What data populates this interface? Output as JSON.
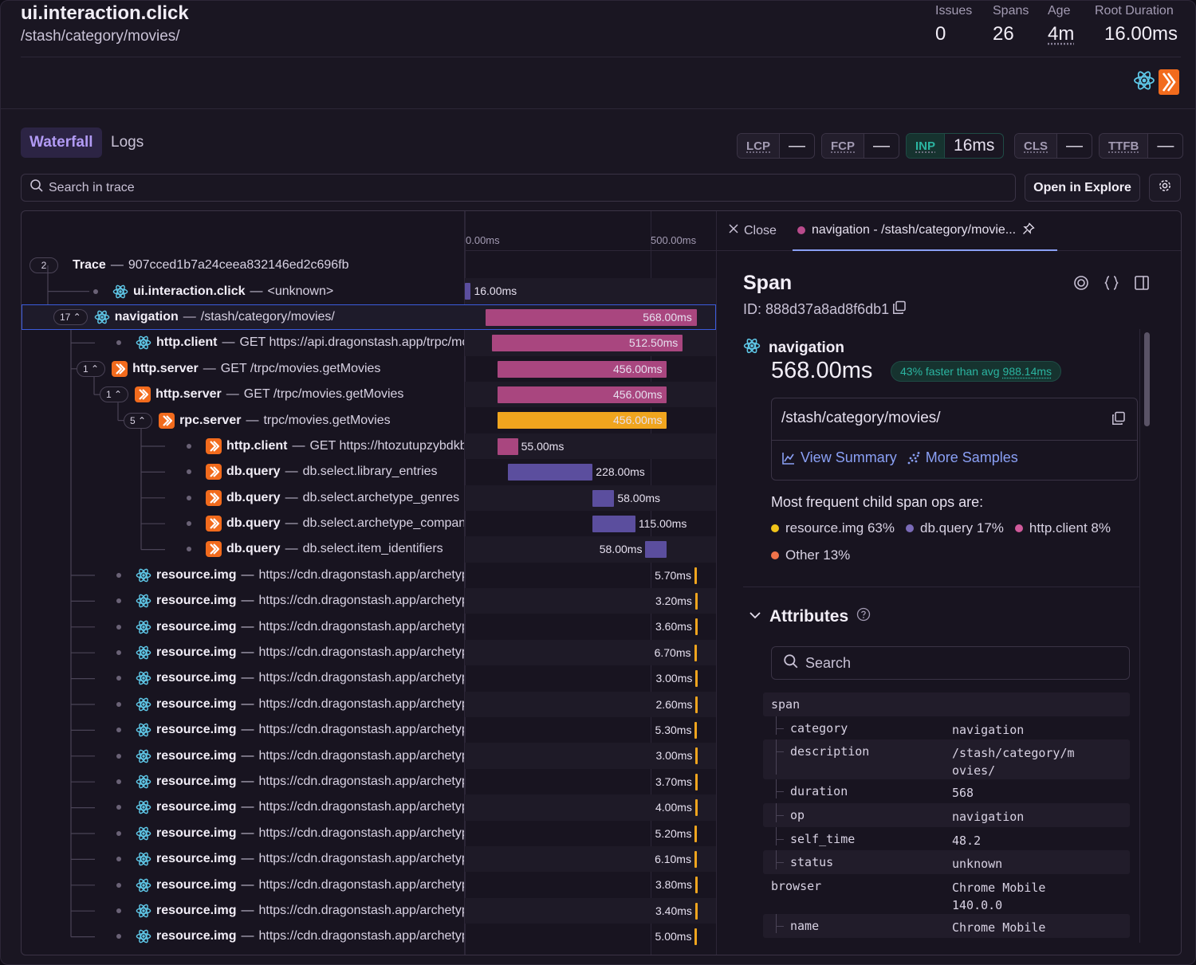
{
  "header": {
    "title": "ui.interaction.click",
    "path": "/stash/category/movies/",
    "stats": [
      {
        "label": "Issues",
        "value": "0"
      },
      {
        "label": "Spans",
        "value": "26"
      },
      {
        "label": "Age",
        "value": "4m"
      },
      {
        "label": "Root Duration",
        "value": "16.00ms"
      }
    ]
  },
  "tabs": {
    "waterfall": "Waterfall",
    "logs": "Logs"
  },
  "vitals": [
    {
      "key": "LCP",
      "value": "—"
    },
    {
      "key": "FCP",
      "value": "—"
    },
    {
      "key": "INP",
      "value": "16ms"
    },
    {
      "key": "CLS",
      "value": "—"
    },
    {
      "key": "TTFB",
      "value": "—"
    }
  ],
  "search": {
    "placeholder": "Search in trace",
    "open_explore": "Open in Explore"
  },
  "ruler": {
    "t0": "0.00ms",
    "t1": "500.00ms"
  },
  "trace": {
    "count": "2",
    "op": "Trace",
    "id": "907cced1b7a24ceea832146ed2c696fb"
  },
  "rows": [
    {
      "op": "ui.interaction.click",
      "desc": "<unknown>",
      "icon": "react",
      "label": "16.00ms",
      "start_ms": 0,
      "duration_ms": 16,
      "color": "#5b4e9e"
    },
    {
      "badge": "17^",
      "op": "navigation",
      "desc": "/stash/category/movies/",
      "icon": "react",
      "label": "568.00ms",
      "start_ms": 56,
      "duration_ms": 568,
      "color": "#a9467f",
      "selected": true
    },
    {
      "op": "http.client",
      "desc": "GET https://api.dragonstash.app/trpc/movies.getMovies",
      "icon": "react",
      "label": "512.50ms",
      "start_ms": 74,
      "duration_ms": 512.5,
      "color": "#a9467f"
    },
    {
      "badge": "1^",
      "op": "http.server",
      "desc": "GET /trpc/movies.getMovies",
      "icon": "node",
      "label": "456.00ms",
      "start_ms": 88,
      "duration_ms": 456,
      "color": "#a9467f"
    },
    {
      "badge": "1^",
      "op": "http.server",
      "desc": "GET /trpc/movies.getMovies",
      "icon": "node",
      "label": "456.00ms",
      "start_ms": 88,
      "duration_ms": 456,
      "color": "#a9467f"
    },
    {
      "badge": "5^",
      "op": "rpc.server",
      "desc": "trpc/movies.getMovies",
      "icon": "node",
      "label": "456.00ms",
      "start_ms": 88,
      "duration_ms": 456,
      "color": "#f0a51e"
    },
    {
      "op": "http.client",
      "desc": "GET https://htozutupzybdkbnkdmsa.supabase.co",
      "icon": "node",
      "label": "55.00ms",
      "start_ms": 88,
      "duration_ms": 55,
      "color": "#a9467f"
    },
    {
      "op": "db.query",
      "desc": "db.select.library_entries",
      "icon": "node",
      "label": "228.00ms",
      "start_ms": 116,
      "duration_ms": 228,
      "color": "#5b4e9e"
    },
    {
      "op": "db.query",
      "desc": "db.select.archetype_genres",
      "icon": "node",
      "label": "58.00ms",
      "start_ms": 344,
      "duration_ms": 58,
      "color": "#5b4e9e"
    },
    {
      "op": "db.query",
      "desc": "db.select.archetype_companies",
      "icon": "node",
      "label": "115.00ms",
      "start_ms": 344,
      "duration_ms": 115,
      "color": "#5b4e9e"
    },
    {
      "op": "db.query",
      "desc": "db.select.item_identifiers",
      "icon": "node",
      "label": "58.00ms",
      "start_ms": 486,
      "duration_ms": 58,
      "color": "#5b4e9e"
    },
    {
      "op": "resource.img",
      "desc": "https://cdn.dragonstash.app/archetypes/movies",
      "icon": "react",
      "label": "5.70ms",
      "start_ms": 618,
      "duration_ms": 5.7,
      "color": "#f0a51e"
    },
    {
      "op": "resource.img",
      "desc": "https://cdn.dragonstash.app/archetypes/movies",
      "icon": "react",
      "label": "3.20ms",
      "start_ms": 620,
      "duration_ms": 3.2,
      "color": "#f0a51e"
    },
    {
      "op": "resource.img",
      "desc": "https://cdn.dragonstash.app/archetypes/movies",
      "icon": "react",
      "label": "3.60ms",
      "start_ms": 620,
      "duration_ms": 3.6,
      "color": "#f0a51e"
    },
    {
      "op": "resource.img",
      "desc": "https://cdn.dragonstash.app/archetypes/movies",
      "icon": "react",
      "label": "6.70ms",
      "start_ms": 617,
      "duration_ms": 6.7,
      "color": "#f0a51e"
    },
    {
      "op": "resource.img",
      "desc": "https://cdn.dragonstash.app/archetypes/movies",
      "icon": "react",
      "label": "3.00ms",
      "start_ms": 621,
      "duration_ms": 3.0,
      "color": "#f0a51e"
    },
    {
      "op": "resource.img",
      "desc": "https://cdn.dragonstash.app/archetypes/movies",
      "icon": "react",
      "label": "2.60ms",
      "start_ms": 621,
      "duration_ms": 2.6,
      "color": "#f0a51e"
    },
    {
      "op": "resource.img",
      "desc": "https://cdn.dragonstash.app/archetypes/movies",
      "icon": "react",
      "label": "5.30ms",
      "start_ms": 619,
      "duration_ms": 5.3,
      "color": "#f0a51e"
    },
    {
      "op": "resource.img",
      "desc": "https://cdn.dragonstash.app/archetypes/movies",
      "icon": "react",
      "label": "3.00ms",
      "start_ms": 621,
      "duration_ms": 3.0,
      "color": "#f0a51e"
    },
    {
      "op": "resource.img",
      "desc": "https://cdn.dragonstash.app/archetypes/movies",
      "icon": "react",
      "label": "3.70ms",
      "start_ms": 620,
      "duration_ms": 3.7,
      "color": "#f0a51e"
    },
    {
      "op": "resource.img",
      "desc": "https://cdn.dragonstash.app/archetypes/movies",
      "icon": "react",
      "label": "4.00ms",
      "start_ms": 620,
      "duration_ms": 4.0,
      "color": "#f0a51e"
    },
    {
      "op": "resource.img",
      "desc": "https://cdn.dragonstash.app/archetypes/movies",
      "icon": "react",
      "label": "5.20ms",
      "start_ms": 619,
      "duration_ms": 5.2,
      "color": "#f0a51e"
    },
    {
      "op": "resource.img",
      "desc": "https://cdn.dragonstash.app/archetypes/movies",
      "icon": "react",
      "label": "6.10ms",
      "start_ms": 618,
      "duration_ms": 6.1,
      "color": "#f0a51e"
    },
    {
      "op": "resource.img",
      "desc": "https://cdn.dragonstash.app/archetypes/movies",
      "icon": "react",
      "label": "3.80ms",
      "start_ms": 620,
      "duration_ms": 3.8,
      "color": "#f0a51e"
    },
    {
      "op": "resource.img",
      "desc": "https://cdn.dragonstash.app/archetypes/movies",
      "icon": "react",
      "label": "3.40ms",
      "start_ms": 620,
      "duration_ms": 3.4,
      "color": "#f0a51e"
    },
    {
      "op": "resource.img",
      "desc": "https://cdn.dragonstash.app/archetypes/movies",
      "icon": "react",
      "label": "5.00ms",
      "start_ms": 619,
      "duration_ms": 5.0,
      "color": "#f0a51e"
    }
  ],
  "timeline_max_ms": 680,
  "detail": {
    "close": "Close",
    "tab_label": "navigation - /stash/category/movie...",
    "title": "Span",
    "id": "ID: 888d37a8ad8f6db1",
    "op": "navigation",
    "duration": "568.00ms",
    "faster_prefix": "43% faster than avg",
    "faster_avg": "988.14ms",
    "path": "/stash/category/movies/",
    "view_summary": "View Summary",
    "more_samples": "More Samples",
    "freq_title": "Most frequent child span ops are:",
    "freq": [
      {
        "label": "resource.img 63%",
        "color": "#f0c419"
      },
      {
        "label": "db.query 17%",
        "color": "#7b6bb8"
      },
      {
        "label": "http.client 8%",
        "color": "#d05a9b"
      },
      {
        "label": "Other 13%",
        "color": "#f0734a"
      }
    ],
    "attributes_title": "Attributes",
    "attr_search": "Search",
    "attributes": [
      {
        "key": "span",
        "value": "",
        "child": false
      },
      {
        "key": "category",
        "value": "navigation",
        "child": true
      },
      {
        "key": "description",
        "value": "/stash/category/m​ovies/",
        "child": true
      },
      {
        "key": "duration",
        "value": "568",
        "child": true
      },
      {
        "key": "op",
        "value": "navigation",
        "child": true
      },
      {
        "key": "self_time",
        "value": "48.2",
        "child": true
      },
      {
        "key": "status",
        "value": "unknown",
        "child": true
      },
      {
        "key": "browser",
        "value": "Chrome Mobile 140.0.0",
        "child": false
      },
      {
        "key": "name",
        "value": "Chrome Mobile",
        "child": true
      }
    ]
  }
}
